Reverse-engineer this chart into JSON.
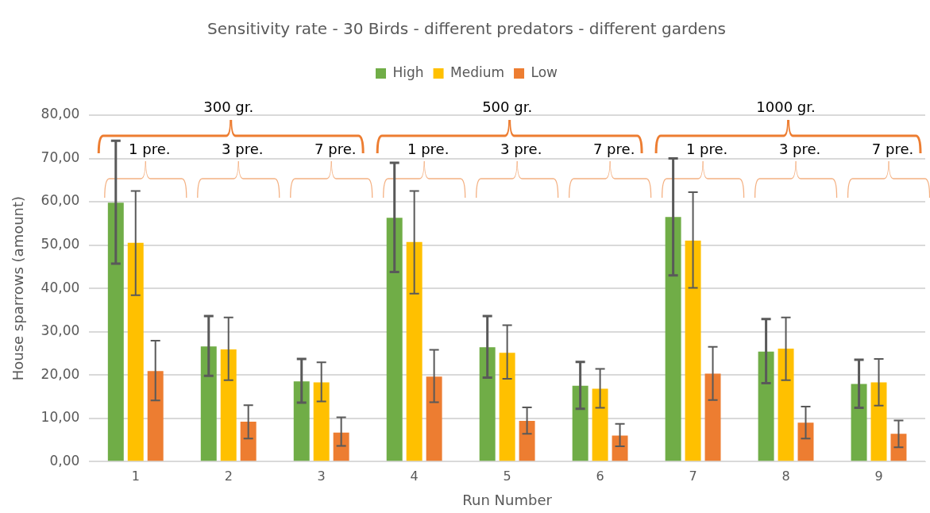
{
  "chart_data": {
    "type": "bar",
    "title": "Sensitivity rate - 30 Birds - different predators - different gardens",
    "xlabel": "Run Number",
    "ylabel": "House sparrows (amount)",
    "categories": [
      "1",
      "2",
      "3",
      "4",
      "5",
      "6",
      "7",
      "8",
      "9"
    ],
    "series": [
      {
        "name": "High",
        "color": "#70ad47",
        "values": [
          59.8,
          26.6,
          18.5,
          56.3,
          26.4,
          17.5,
          56.5,
          25.4,
          17.9
        ],
        "errors": [
          [
            45.7,
            74.1
          ],
          [
            19.8,
            33.6
          ],
          [
            13.6,
            23.7
          ],
          [
            43.8,
            69.0
          ],
          [
            19.4,
            33.6
          ],
          [
            12.2,
            23.0
          ],
          [
            43.0,
            70.0
          ],
          [
            18.1,
            32.9
          ],
          [
            12.4,
            23.5
          ]
        ]
      },
      {
        "name": "Medium",
        "color": "#ffc000",
        "values": [
          50.5,
          25.9,
          18.3,
          50.7,
          25.1,
          16.8,
          51.0,
          26.1,
          18.3
        ],
        "errors": [
          [
            38.4,
            62.5
          ],
          [
            18.8,
            33.3
          ],
          [
            13.9,
            22.9
          ],
          [
            38.8,
            62.5
          ],
          [
            19.1,
            31.5
          ],
          [
            12.4,
            21.4
          ],
          [
            40.1,
            62.2
          ],
          [
            18.8,
            33.3
          ],
          [
            12.9,
            23.7
          ]
        ]
      },
      {
        "name": "Low",
        "color": "#ed7d31",
        "values": [
          20.9,
          9.2,
          6.7,
          19.6,
          9.4,
          6.0,
          20.3,
          9.0,
          6.4
        ],
        "errors": [
          [
            14.1,
            27.9
          ],
          [
            5.3,
            13.0
          ],
          [
            3.6,
            10.2
          ],
          [
            13.7,
            25.8
          ],
          [
            6.4,
            12.5
          ],
          [
            3.5,
            8.7
          ],
          [
            14.2,
            26.5
          ],
          [
            5.3,
            12.7
          ],
          [
            3.3,
            9.5
          ]
        ]
      }
    ],
    "ylim": [
      0,
      80
    ],
    "yticks": [
      {
        "value": 0,
        "label": "0,00"
      },
      {
        "value": 10,
        "label": "10,00"
      },
      {
        "value": 20,
        "label": "20,00"
      },
      {
        "value": 30,
        "label": "30,00"
      },
      {
        "value": 40,
        "label": "40,00"
      },
      {
        "value": 50,
        "label": "50,00"
      },
      {
        "value": 60,
        "label": "60,00"
      },
      {
        "value": 70,
        "label": "70,00"
      },
      {
        "value": 80,
        "label": "80,00"
      }
    ],
    "grid": "y",
    "legend": "top",
    "annotations": [
      "300 gr.",
      "500 gr.",
      "1000 gr.",
      "1 pre.",
      "3 pre.",
      "7 pre.",
      "1 pre.",
      "3 pre.",
      "7 pre.",
      "1 pre.",
      "3 pre.",
      "7 pre."
    ]
  }
}
